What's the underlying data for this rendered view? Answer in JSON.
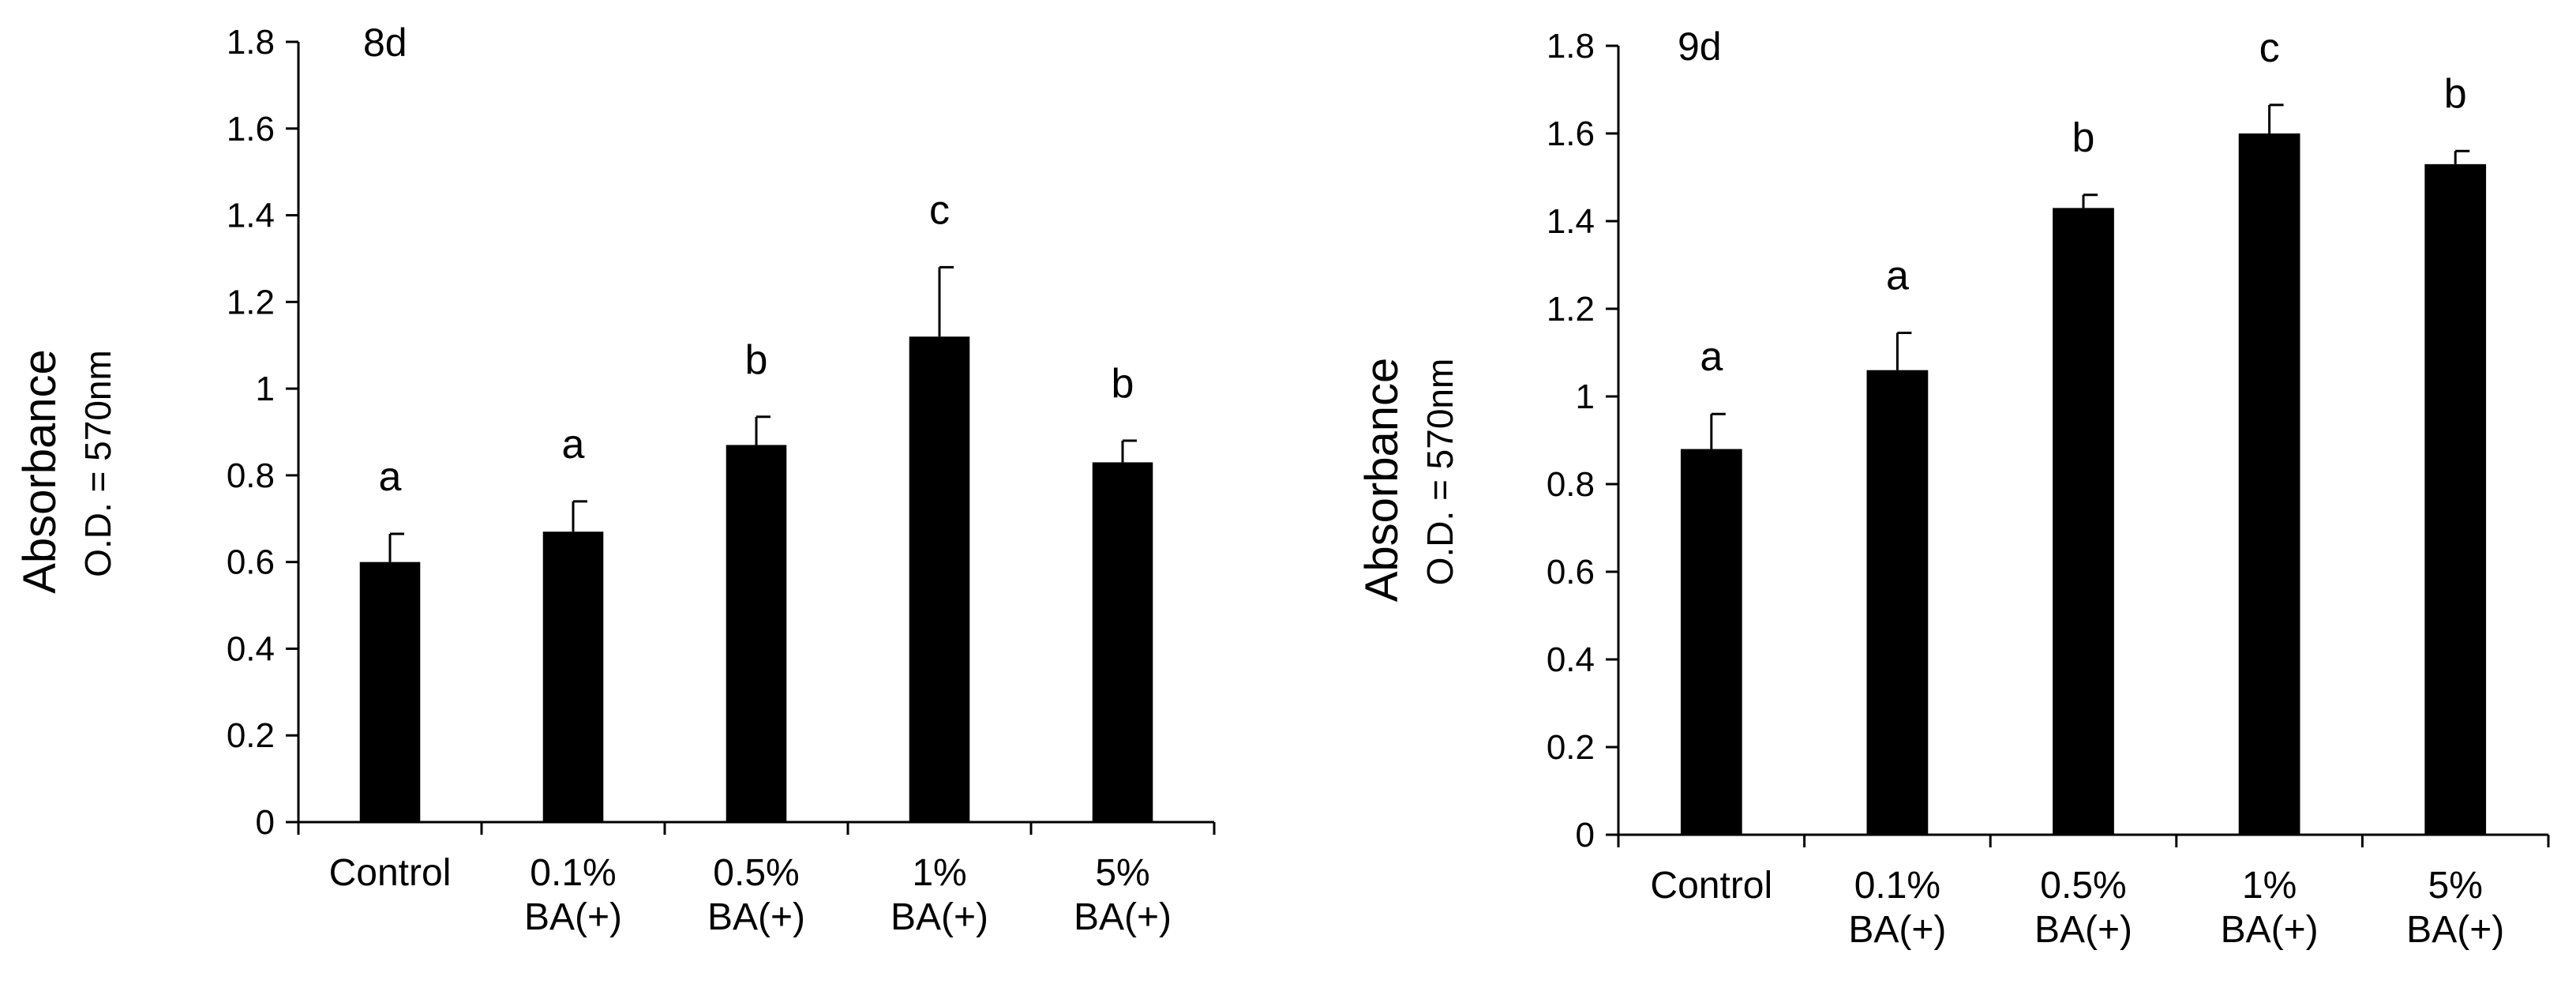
{
  "chart_data": [
    {
      "type": "bar",
      "title": "8d",
      "ylabel": "Absorbance",
      "ylabel_sub": "O.D. = 570nm",
      "xlabel": "",
      "ylim": [
        0,
        1.8
      ],
      "yticks": [
        "0",
        "0.2",
        "0.4",
        "0.6",
        "0.8",
        "1",
        "1.2",
        "1.4",
        "1.6",
        "1.8"
      ],
      "categories": [
        [
          "Control"
        ],
        [
          "0.1%",
          "BA(+)"
        ],
        [
          "0.5%",
          "BA(+)"
        ],
        [
          "1%",
          "BA(+)"
        ],
        [
          "5%",
          "BA(+)"
        ]
      ],
      "values": [
        0.6,
        0.67,
        0.87,
        1.12,
        0.83
      ],
      "errors": [
        0.065,
        0.07,
        0.065,
        0.16,
        0.05
      ],
      "significance": [
        "a",
        "a",
        "b",
        "c",
        "b"
      ],
      "bar_color": "#000000"
    },
    {
      "type": "bar",
      "title": "9d",
      "ylabel": "Absorbance",
      "ylabel_sub": "O.D. = 570nm",
      "xlabel": "",
      "ylim": [
        0,
        1.8
      ],
      "yticks": [
        "0",
        "0.2",
        "0.4",
        "0.6",
        "0.8",
        "1",
        "1.2",
        "1.4",
        "1.6",
        "1.8"
      ],
      "categories": [
        [
          "Control"
        ],
        [
          "0.1%",
          "BA(+)"
        ],
        [
          "0.5%",
          "BA(+)"
        ],
        [
          "1%",
          "BA(+)"
        ],
        [
          "5%",
          "BA(+)"
        ]
      ],
      "values": [
        0.88,
        1.06,
        1.43,
        1.6,
        1.53
      ],
      "errors": [
        0.08,
        0.085,
        0.03,
        0.065,
        0.03
      ],
      "significance": [
        "a",
        "a",
        "b",
        "c",
        "b"
      ],
      "bar_color": "#000000"
    }
  ]
}
